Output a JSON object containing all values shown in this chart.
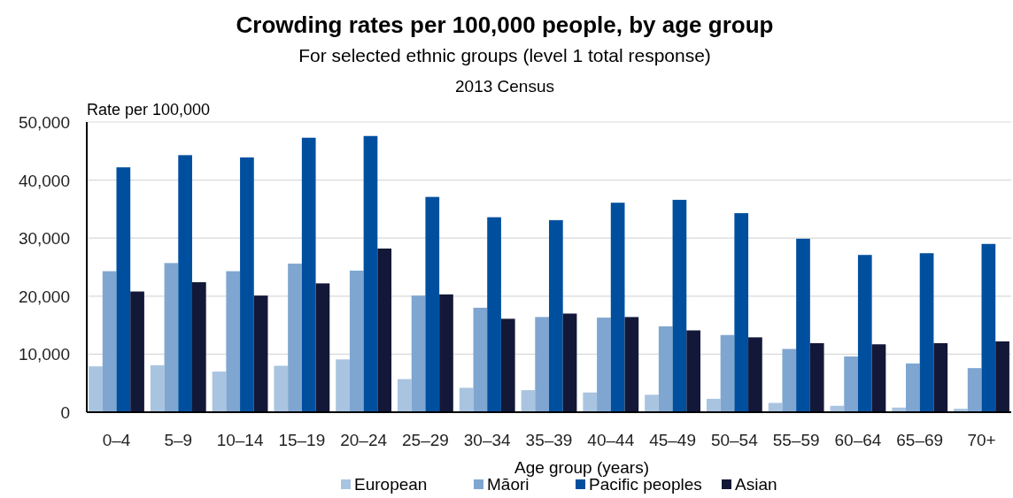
{
  "chart_data": {
    "type": "bar",
    "title": "Crowding rates per 100,000 people, by age group",
    "subtitle": "For selected ethnic groups (level 1 total response)",
    "annotations": [
      "2013 Census"
    ],
    "ylabel": "Rate per 100,000",
    "xlabel": "Age group (years)",
    "categories": [
      "0–4",
      "5–9",
      "10–14",
      "15–19",
      "20–24",
      "25–29",
      "30–34",
      "35–39",
      "40–44",
      "45–49",
      "50–54",
      "55–59",
      "60–64",
      "65–69",
      "70+"
    ],
    "series": [
      {
        "name": "European",
        "color": "#a9c4e0",
        "values": [
          7900,
          8100,
          7000,
          8000,
          9100,
          5700,
          4200,
          3800,
          3400,
          3000,
          2300,
          1600,
          1100,
          800,
          600
        ]
      },
      {
        "name": "Māori",
        "color": "#7fa6d0",
        "values": [
          24300,
          25700,
          24300,
          25600,
          24400,
          20100,
          18000,
          16400,
          16300,
          14800,
          13300,
          10900,
          9600,
          8400,
          7600
        ]
      },
      {
        "name": "Pacific peoples",
        "color": "#004f9f",
        "values": [
          42200,
          44300,
          43900,
          47300,
          47600,
          37100,
          33600,
          33100,
          36100,
          36600,
          34300,
          29900,
          27100,
          27400,
          29000
        ]
      },
      {
        "name": "Asian",
        "color": "#131838",
        "values": [
          20800,
          22400,
          20100,
          22200,
          28200,
          20300,
          16100,
          17000,
          16400,
          14100,
          12900,
          11900,
          11700,
          11900,
          12200
        ]
      }
    ],
    "ylim": [
      0,
      50000
    ],
    "yticks": [
      {
        "value": 0,
        "label": "0"
      },
      {
        "value": 10000,
        "label": "10,000"
      },
      {
        "value": 20000,
        "label": "20,000"
      },
      {
        "value": 30000,
        "label": "30,000"
      },
      {
        "value": 40000,
        "label": "40,000"
      },
      {
        "value": 50000,
        "label": "50,000"
      }
    ],
    "grid": "y",
    "legend": "bottom"
  }
}
